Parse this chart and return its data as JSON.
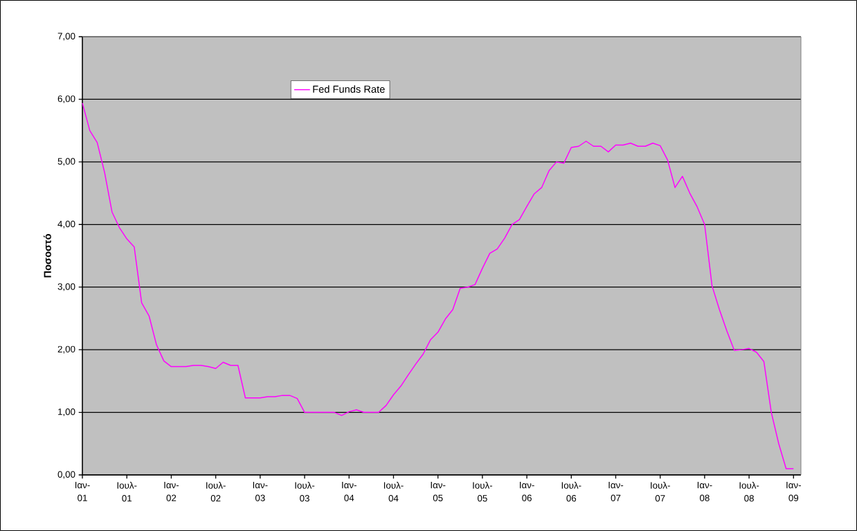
{
  "chart_data": {
    "type": "line",
    "ylabel": "Ποσοστό",
    "x": [
      "2001-01",
      "2001-02",
      "2001-03",
      "2001-04",
      "2001-05",
      "2001-06",
      "2001-07",
      "2001-08",
      "2001-09",
      "2001-10",
      "2001-11",
      "2001-12",
      "2002-01",
      "2002-02",
      "2002-03",
      "2002-04",
      "2002-05",
      "2002-06",
      "2002-07",
      "2002-08",
      "2002-09",
      "2002-10",
      "2002-11",
      "2002-12",
      "2003-01",
      "2003-02",
      "2003-03",
      "2003-04",
      "2003-05",
      "2003-06",
      "2003-07",
      "2003-08",
      "2003-09",
      "2003-10",
      "2003-11",
      "2003-12",
      "2004-01",
      "2004-02",
      "2004-03",
      "2004-04",
      "2004-05",
      "2004-06",
      "2004-07",
      "2004-08",
      "2004-09",
      "2004-10",
      "2004-11",
      "2004-12",
      "2005-01",
      "2005-02",
      "2005-03",
      "2005-04",
      "2005-05",
      "2005-06",
      "2005-07",
      "2005-08",
      "2005-09",
      "2005-10",
      "2005-11",
      "2005-12",
      "2006-01",
      "2006-02",
      "2006-03",
      "2006-04",
      "2006-05",
      "2006-06",
      "2006-07",
      "2006-08",
      "2006-09",
      "2006-10",
      "2006-11",
      "2006-12",
      "2007-01",
      "2007-02",
      "2007-03",
      "2007-04",
      "2007-05",
      "2007-06",
      "2007-07",
      "2007-08",
      "2007-09",
      "2007-10",
      "2007-11",
      "2007-12",
      "2008-01",
      "2008-02",
      "2008-03",
      "2008-04",
      "2008-05",
      "2008-06",
      "2008-07",
      "2008-08",
      "2008-09",
      "2008-10",
      "2008-11",
      "2008-12",
      "2009-01"
    ],
    "series": [
      {
        "name": "Fed Funds Rate",
        "color": "#ff00ff",
        "values": [
          5.94,
          5.5,
          5.31,
          4.83,
          4.2,
          3.95,
          3.77,
          3.64,
          2.75,
          2.54,
          2.08,
          1.82,
          1.73,
          1.73,
          1.73,
          1.75,
          1.75,
          1.73,
          1.7,
          1.8,
          1.75,
          1.75,
          1.23,
          1.23,
          1.23,
          1.25,
          1.25,
          1.27,
          1.27,
          1.22,
          1.0,
          1.0,
          1.0,
          1.0,
          1.0,
          0.95,
          1.01,
          1.04,
          1.0,
          1.0,
          1.0,
          1.11,
          1.28,
          1.42,
          1.6,
          1.77,
          1.93,
          2.16,
          2.28,
          2.49,
          2.64,
          2.98,
          3.0,
          3.04,
          3.3,
          3.54,
          3.61,
          3.78,
          4.0,
          4.08,
          4.29,
          4.49,
          4.59,
          4.86,
          5.0,
          4.98,
          5.23,
          5.25,
          5.33,
          5.25,
          5.25,
          5.16,
          5.27,
          5.27,
          5.3,
          5.25,
          5.25,
          5.3,
          5.26,
          5.03,
          4.59,
          4.77,
          4.5,
          4.28,
          4.0,
          3.02,
          2.64,
          2.3,
          1.99,
          2.0,
          2.02,
          1.96,
          1.81,
          1.0,
          0.5,
          0.1,
          0.1
        ]
      }
    ],
    "xlim": [
      "2001-01",
      "2009-02"
    ],
    "xticks": [
      {
        "value": "2001-01",
        "label": "Ιαν-01"
      },
      {
        "value": "2001-07",
        "label": "Ιουλ-01"
      },
      {
        "value": "2002-01",
        "label": "Ιαν-02"
      },
      {
        "value": "2002-07",
        "label": "Ιουλ-02"
      },
      {
        "value": "2003-01",
        "label": "Ιαν-03"
      },
      {
        "value": "2003-07",
        "label": "Ιουλ-03"
      },
      {
        "value": "2004-01",
        "label": "Ιαν-04"
      },
      {
        "value": "2004-07",
        "label": "Ιουλ-04"
      },
      {
        "value": "2005-01",
        "label": "Ιαν-05"
      },
      {
        "value": "2005-07",
        "label": "Ιουλ-05"
      },
      {
        "value": "2006-01",
        "label": "Ιαν-06"
      },
      {
        "value": "2006-07",
        "label": "Ιουλ-06"
      },
      {
        "value": "2007-01",
        "label": "Ιαν-07"
      },
      {
        "value": "2007-07",
        "label": "Ιουλ-07"
      },
      {
        "value": "2008-01",
        "label": "Ιαν-08"
      },
      {
        "value": "2008-07",
        "label": "Ιουλ-08"
      },
      {
        "value": "2009-01",
        "label": "Ιαν-09"
      }
    ],
    "ylim": [
      0,
      7
    ],
    "yticks": [
      {
        "value": 0,
        "label": "0,00"
      },
      {
        "value": 1,
        "label": "1,00"
      },
      {
        "value": 2,
        "label": "2,00"
      },
      {
        "value": 3,
        "label": "3,00"
      },
      {
        "value": 4,
        "label": "4,00"
      },
      {
        "value": 5,
        "label": "5,00"
      },
      {
        "value": 6,
        "label": "6,00"
      },
      {
        "value": 7,
        "label": "7,00"
      }
    ],
    "grid": "y",
    "legend": "top left"
  }
}
